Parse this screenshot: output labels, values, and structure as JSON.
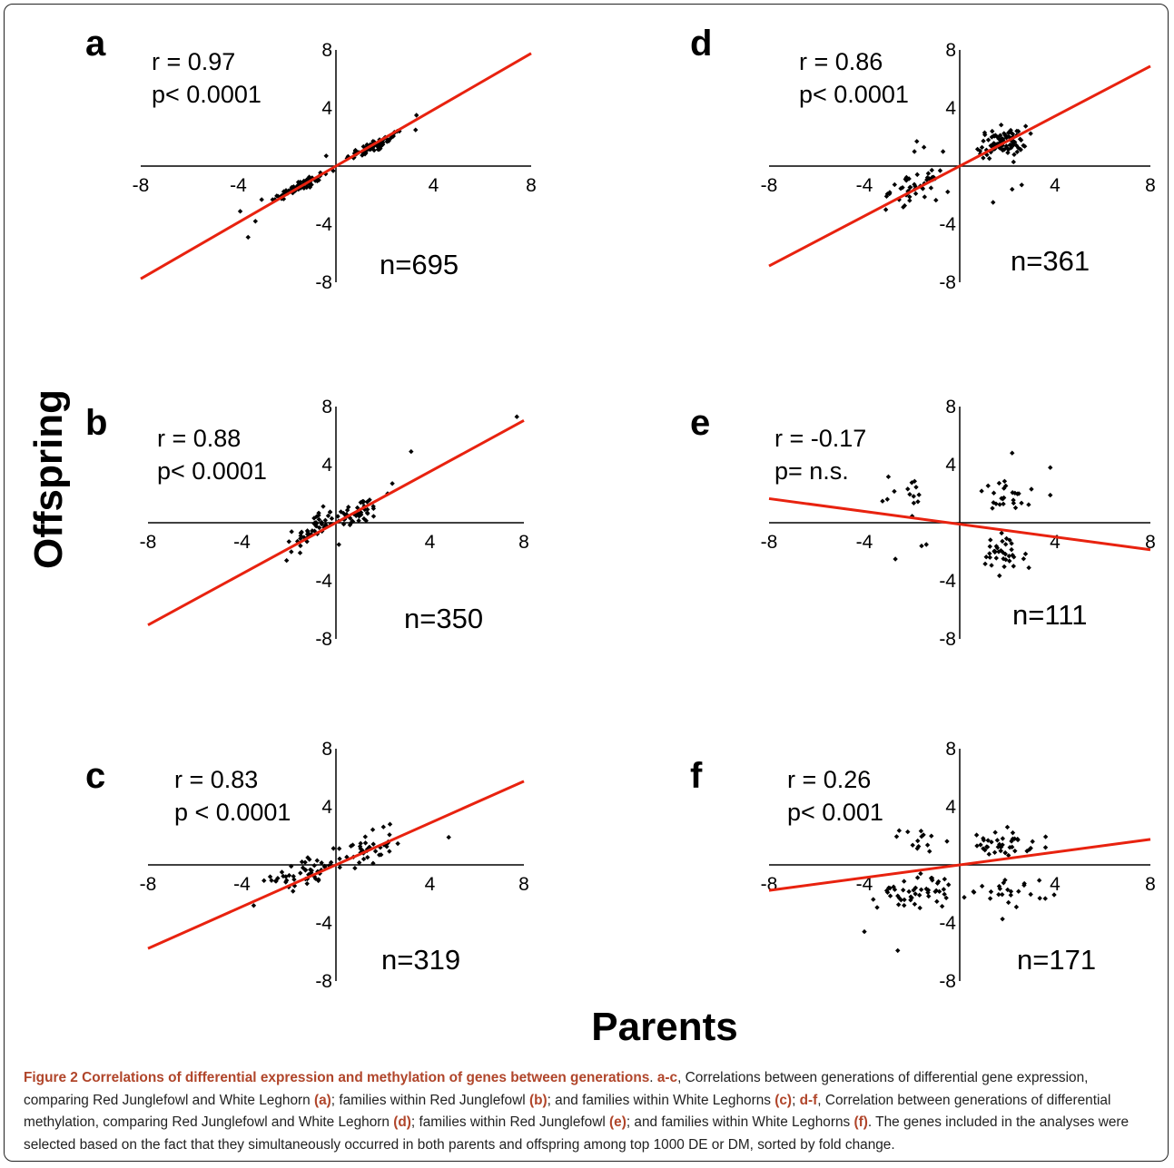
{
  "axis_titles": {
    "y": "Offspring",
    "x": "Parents"
  },
  "caption": {
    "title": "Figure 2 Correlations of differential expression and methylation of genes between generations",
    "segments": [
      {
        "t": ". ",
        "b": false
      },
      {
        "t": "a-c",
        "b": true
      },
      {
        "t": ", Correlations between generations of differential gene expression, comparing Red Junglefowl and White Leghorn ",
        "b": false
      },
      {
        "t": "(a)",
        "b": true
      },
      {
        "t": "; families within Red Junglefowl ",
        "b": false
      },
      {
        "t": "(b)",
        "b": true
      },
      {
        "t": "; and families within White Leghorns ",
        "b": false
      },
      {
        "t": "(c)",
        "b": true
      },
      {
        "t": "; ",
        "b": false
      },
      {
        "t": "d-f",
        "b": true
      },
      {
        "t": ", Correlation between generations of differential methylation, comparing Red Junglefowl and White Leghorn ",
        "b": false
      },
      {
        "t": "(d)",
        "b": true
      },
      {
        "t": "; families within Red Junglefowl ",
        "b": false
      },
      {
        "t": "(e)",
        "b": true
      },
      {
        "t": "; and families within White Leghorns ",
        "b": false
      },
      {
        "t": "(f)",
        "b": true
      },
      {
        "t": ". The genes included in the analyses were selected based on the fact that they simultaneously occurred in both parents and offspring among top 1000 DE or DM, sorted by fold change.",
        "b": false
      }
    ]
  },
  "colors": {
    "regression_line": "#e8220f",
    "points": "#000000",
    "caption_emphasis": "#b0452a"
  },
  "chart_data": [
    {
      "panel": "a",
      "type": "scatter",
      "stats": [
        "r = 0.97",
        "p< 0.0001"
      ],
      "n_label": "n=695",
      "xlim": [
        -8,
        8
      ],
      "ylim": [
        -8,
        8
      ],
      "xticks": [
        -8,
        -4,
        4,
        8
      ],
      "yticks": [
        8,
        4,
        -4,
        -8
      ],
      "regression": {
        "slope": 0.97,
        "intercept": 0
      },
      "clusters": [
        {
          "cx": 1.6,
          "cy": 1.4,
          "sx": 0.6,
          "sy": 0.5,
          "n": 70,
          "corr": 0.9
        },
        {
          "cx": -1.5,
          "cy": -1.4,
          "sx": 0.6,
          "sy": 0.5,
          "n": 70,
          "corr": 0.9
        }
      ],
      "points": [
        [
          3.3,
          3.5
        ],
        [
          2.6,
          2.4
        ],
        [
          -3.6,
          -4.9
        ],
        [
          -3.3,
          -3.8
        ],
        [
          -2.5,
          -2.3
        ],
        [
          -0.4,
          0.7
        ]
      ]
    },
    {
      "panel": "b",
      "type": "scatter",
      "stats": [
        "r = 0.88",
        "p< 0.0001"
      ],
      "n_label": "n=350",
      "xlim": [
        -8,
        8
      ],
      "ylim": [
        -8,
        8
      ],
      "xticks": [
        -8,
        -4,
        4,
        8
      ],
      "yticks": [
        8,
        4,
        -4,
        -8
      ],
      "regression": {
        "slope": 0.88,
        "intercept": 0
      },
      "clusters": [
        {
          "cx": 0.9,
          "cy": 0.7,
          "sx": 0.5,
          "sy": 0.5,
          "n": 45,
          "corr": 0.5
        },
        {
          "cx": -0.9,
          "cy": -0.4,
          "sx": 0.4,
          "sy": 0.6,
          "n": 45,
          "corr": 0.5
        }
      ],
      "points": [
        [
          7.7,
          7.3
        ],
        [
          3.2,
          4.9
        ],
        [
          2.4,
          2.7
        ],
        [
          2.2,
          2.0
        ],
        [
          -1.9,
          -2.0
        ],
        [
          -2.1,
          -2.6
        ],
        [
          -2.0,
          -1.3
        ]
      ]
    },
    {
      "panel": "c",
      "type": "scatter",
      "stats": [
        "r = 0.83",
        "p < 0.0001"
      ],
      "n_label": "n=319",
      "xlim": [
        -8,
        8
      ],
      "ylim": [
        -8,
        8
      ],
      "xticks": [
        -8,
        -4,
        4,
        8
      ],
      "yticks": [
        8,
        4,
        -4,
        -8
      ],
      "regression": {
        "slope": 0.72,
        "intercept": 0
      },
      "clusters": [
        {
          "cx": 1.2,
          "cy": 1.0,
          "sx": 0.6,
          "sy": 0.6,
          "n": 40,
          "corr": 0.4
        },
        {
          "cx": -1.3,
          "cy": -0.6,
          "sx": 0.7,
          "sy": 0.5,
          "n": 45,
          "corr": 0.4
        }
      ],
      "points": [
        [
          4.8,
          1.9
        ],
        [
          2.3,
          2.8
        ],
        [
          -3.5,
          -2.8
        ],
        [
          -2.3,
          -0.5
        ],
        [
          -1.2,
          0.5
        ],
        [
          -0.8,
          0.3
        ]
      ]
    },
    {
      "panel": "d",
      "type": "scatter",
      "stats": [
        "r = 0.86",
        "p< 0.0001"
      ],
      "n_label": "n=361",
      "xlim": [
        -8,
        8
      ],
      "ylim": [
        -8,
        8
      ],
      "xticks": [
        -8,
        -4,
        4,
        8
      ],
      "yticks": [
        8,
        4,
        -4,
        -8
      ],
      "regression": {
        "slope": 0.86,
        "intercept": 0
      },
      "clusters": [
        {
          "cx": 1.8,
          "cy": 1.6,
          "sx": 0.5,
          "sy": 0.5,
          "n": 90,
          "corr": 0.2
        },
        {
          "cx": -1.9,
          "cy": -1.5,
          "sx": 0.5,
          "sy": 0.5,
          "n": 45,
          "corr": 0.2
        }
      ],
      "points": [
        [
          -1.8,
          1.7
        ],
        [
          -1.5,
          1.3
        ],
        [
          -1.9,
          1.0
        ],
        [
          -0.7,
          1.0
        ],
        [
          2.6,
          -1.3
        ],
        [
          2.2,
          -1.6
        ],
        [
          1.4,
          -2.5
        ],
        [
          -3.1,
          -3.0
        ]
      ]
    },
    {
      "panel": "e",
      "type": "scatter",
      "stats": [
        "r = -0.17",
        "p= n.s."
      ],
      "n_label": "n=111",
      "xlim": [
        -8,
        8
      ],
      "ylim": [
        -8,
        8
      ],
      "xticks": [
        -8,
        -4,
        4,
        8
      ],
      "yticks": [
        8,
        4,
        -4,
        -8
      ],
      "regression": {
        "slope": -0.22,
        "intercept": -0.1
      },
      "clusters": [
        {
          "cx": 2.2,
          "cy": 1.8,
          "sx": 0.8,
          "sy": 0.5,
          "n": 25,
          "corr": 0
        },
        {
          "cx": 1.8,
          "cy": -2.3,
          "sx": 0.5,
          "sy": 0.8,
          "n": 35,
          "corr": 0
        },
        {
          "cx": -2.0,
          "cy": 2.1,
          "sx": 0.6,
          "sy": 0.6,
          "n": 14,
          "corr": 0
        }
      ],
      "points": [
        [
          2.2,
          4.8
        ],
        [
          3.8,
          3.8
        ],
        [
          3.8,
          1.9
        ],
        [
          -1.6,
          -1.6
        ],
        [
          -1.4,
          -1.5
        ],
        [
          -2.7,
          -2.5
        ],
        [
          2.9,
          -3.1
        ]
      ]
    },
    {
      "panel": "f",
      "type": "scatter",
      "stats": [
        "r = 0.26",
        "p< 0.001"
      ],
      "n_label": "n=171",
      "xlim": [
        -8,
        8
      ],
      "ylim": [
        -8,
        8
      ],
      "xticks": [
        -8,
        -4,
        4,
        8
      ],
      "yticks": [
        8,
        4,
        -4,
        -8
      ],
      "regression": {
        "slope": 0.22,
        "intercept": 0
      },
      "clusters": [
        {
          "cx": 1.8,
          "cy": 1.4,
          "sx": 0.6,
          "sy": 0.4,
          "n": 40,
          "corr": 0
        },
        {
          "cx": -1.8,
          "cy": -1.8,
          "sx": 0.8,
          "sy": 0.6,
          "n": 50,
          "corr": 0
        },
        {
          "cx": 2.2,
          "cy": -1.8,
          "sx": 0.8,
          "sy": 0.5,
          "n": 25,
          "corr": 0
        },
        {
          "cx": -1.7,
          "cy": 1.7,
          "sx": 0.4,
          "sy": 0.4,
          "n": 14,
          "corr": 0
        }
      ],
      "points": [
        [
          -4.0,
          -4.6
        ],
        [
          -2.6,
          -5.9
        ],
        [
          2.0,
          2.6
        ],
        [
          3.6,
          1.2
        ]
      ]
    }
  ]
}
